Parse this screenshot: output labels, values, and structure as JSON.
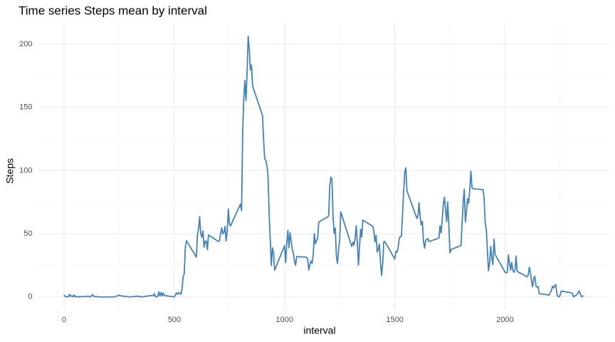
{
  "chart_data": {
    "type": "line",
    "title": "Time series Steps mean by interval",
    "x_label": "interval",
    "y_label": "Steps",
    "x": [
      0,
      5,
      10,
      15,
      20,
      25,
      30,
      35,
      40,
      45,
      50,
      55,
      100,
      105,
      110,
      115,
      120,
      125,
      130,
      135,
      140,
      145,
      150,
      155,
      200,
      230,
      250,
      255,
      300,
      330,
      340,
      345,
      350,
      400,
      405,
      410,
      415,
      420,
      425,
      430,
      435,
      440,
      445,
      450,
      455,
      500,
      505,
      510,
      515,
      520,
      525,
      530,
      535,
      540,
      545,
      550,
      555,
      600,
      605,
      610,
      615,
      620,
      625,
      630,
      635,
      640,
      645,
      650,
      655,
      700,
      705,
      710,
      715,
      720,
      725,
      730,
      735,
      740,
      745,
      750,
      755,
      800,
      805,
      810,
      815,
      820,
      825,
      830,
      835,
      840,
      845,
      850,
      855,
      900,
      905,
      910,
      915,
      920,
      925,
      930,
      935,
      940,
      945,
      950,
      955,
      1000,
      1005,
      1010,
      1015,
      1020,
      1025,
      1030,
      1035,
      1040,
      1045,
      1050,
      1055,
      1100,
      1105,
      1110,
      1115,
      1120,
      1125,
      1130,
      1135,
      1140,
      1145,
      1150,
      1155,
      1200,
      1205,
      1210,
      1215,
      1220,
      1225,
      1230,
      1235,
      1240,
      1245,
      1250,
      1255,
      1300,
      1305,
      1310,
      1315,
      1320,
      1325,
      1330,
      1335,
      1340,
      1345,
      1350,
      1355,
      1400,
      1405,
      1410,
      1415,
      1420,
      1425,
      1430,
      1435,
      1440,
      1445,
      1450,
      1455,
      1500,
      1505,
      1510,
      1515,
      1520,
      1525,
      1530,
      1535,
      1540,
      1545,
      1550,
      1555,
      1600,
      1605,
      1610,
      1615,
      1620,
      1625,
      1630,
      1635,
      1640,
      1645,
      1650,
      1655,
      1700,
      1705,
      1710,
      1715,
      1720,
      1725,
      1730,
      1735,
      1740,
      1745,
      1750,
      1755,
      1800,
      1805,
      1810,
      1815,
      1820,
      1825,
      1830,
      1835,
      1840,
      1845,
      1850,
      1855,
      1900,
      1905,
      1910,
      1915,
      1920,
      1925,
      1930,
      1935,
      1940,
      1945,
      1950,
      1955,
      2000,
      2005,
      2010,
      2015,
      2020,
      2025,
      2030,
      2035,
      2040,
      2045,
      2050,
      2055,
      2100,
      2105,
      2110,
      2115,
      2120,
      2125,
      2130,
      2135,
      2140,
      2145,
      2150,
      2155,
      2200,
      2205,
      2210,
      2215,
      2220,
      2225,
      2230,
      2235,
      2240,
      2245,
      2250,
      2255,
      2300,
      2305,
      2310,
      2315,
      2320,
      2325,
      2330,
      2335,
      2340,
      2345,
      2350,
      2355
    ],
    "series": [
      {
        "name": "Steps",
        "color": "#4682b4",
        "values": [
          1.7,
          0.3,
          0.1,
          0.2,
          0.1,
          2.1,
          0.5,
          0.9,
          0,
          1.5,
          0.3,
          0.1,
          0.3,
          0.7,
          0.2,
          0.3,
          0,
          1.1,
          1.8,
          0.2,
          0.2,
          0.4,
          0.3,
          0,
          0,
          0,
          1.5,
          0.9,
          0,
          0.6,
          0.5,
          0.1,
          0,
          1.2,
          0.9,
          2.6,
          0,
          0.3,
          0.4,
          4.1,
          0.7,
          3.5,
          0.8,
          3.1,
          1.1,
          0,
          1.6,
          3,
          2.2,
          3.3,
          3,
          2.1,
          6.1,
          16,
          18.3,
          39.5,
          44.5,
          31.5,
          49.3,
          53.8,
          63.5,
          50,
          47.1,
          52.2,
          39.3,
          44,
          44.2,
          37.4,
          49,
          43.8,
          44.4,
          50.5,
          54.5,
          49.9,
          51,
          55.7,
          44.3,
          52.3,
          69.5,
          57.8,
          56.2,
          73.4,
          68.2,
          129.4,
          157.5,
          171.2,
          155.4,
          177.3,
          206.2,
          195.9,
          179.6,
          183.4,
          167,
          143.5,
          124,
          109.1,
          108.1,
          103.7,
          95.9,
          66.2,
          45.2,
          24.8,
          38.8,
          35,
          21.1,
          40.6,
          27,
          42.4,
          52.7,
          38.9,
          50.8,
          44.3,
          37.4,
          34.7,
          28.3,
          25.1,
          31.9,
          31.4,
          29.7,
          21.3,
          25.5,
          28.4,
          26.5,
          33.4,
          50,
          42,
          44.6,
          46,
          59.2,
          63.9,
          87.7,
          94.8,
          92.8,
          63.4,
          50.2,
          54.5,
          32.4,
          26.5,
          37.7,
          45.1,
          67.3,
          42.3,
          39.9,
          43.3,
          41,
          46.2,
          56.4,
          42.8,
          25.1,
          40,
          53.5,
          47.3,
          60.8,
          55.8,
          52,
          43.6,
          48.7,
          35.5,
          37.5,
          41.8,
          27.5,
          17.1,
          26.1,
          43.6,
          43.8,
          30,
          36.1,
          35.5,
          38.8,
          46,
          47.8,
          48.1,
          65.3,
          82.9,
          98.7,
          102.1,
          84,
          62.1,
          64.1,
          74.5,
          63.2,
          56.9,
          59.8,
          43.9,
          38.6,
          44.7,
          45.5,
          46.2,
          43.7,
          46.6,
          56.3,
          50.7,
          61.2,
          73.4,
          79,
          68.9,
          59.7,
          75.1,
          56.5,
          34.8,
          37.5,
          40.7,
          58,
          74.7,
          85.3,
          59.3,
          67.8,
          77.7,
          74.2,
          85.3,
          99.5,
          86.6,
          85.6,
          84.9,
          77.8,
          58,
          53.4,
          36.3,
          20.7,
          27.4,
          40,
          30.2,
          25.5,
          45.7,
          33.5,
          19.6,
          19,
          19.3,
          33.3,
          26.8,
          21.2,
          27.3,
          21.3,
          19.5,
          21.3,
          32.3,
          20.2,
          15.9,
          17.2,
          23.5,
          19.2,
          12.5,
          8,
          14.7,
          16.3,
          8.7,
          7.8,
          8.1,
          2.6,
          1.5,
          3.7,
          4.8,
          8.5,
          7.1,
          8.7,
          9.8,
          2.2,
          0.3,
          0.1,
          1.6,
          4.6,
          3.3,
          2.8,
          0,
          0.8,
          1,
          1.6,
          2.6,
          4.7,
          3.3,
          0.6,
          0.2,
          1.1
        ]
      }
    ],
    "xlim": [
      -117.75,
      2472.75
    ],
    "ylim": [
      -10.3,
      216.5
    ],
    "xticks": [
      0,
      500,
      1000,
      1500,
      2000
    ],
    "yticks": [
      0,
      50,
      100,
      150,
      200
    ],
    "xminorticks": [
      250,
      750,
      1250,
      1750,
      2250
    ],
    "yminorticks": [
      25,
      75,
      125,
      175
    ],
    "grid": true
  }
}
